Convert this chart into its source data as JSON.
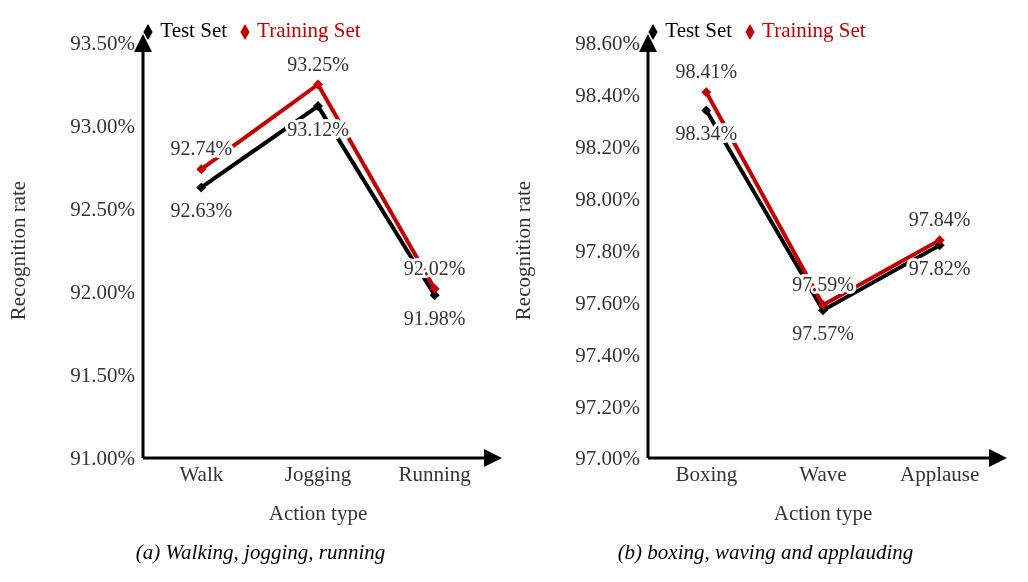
{
  "chart_data": [
    {
      "type": "line",
      "title": "(a) Walking, jogging, running",
      "xlabel": "Action type",
      "ylabel": "Recognition rate",
      "categories": [
        "Walk",
        "Jogging",
        "Running"
      ],
      "series": [
        {
          "name": "Test Set",
          "color": "#000000",
          "values": [
            92.63,
            93.12,
            91.98
          ],
          "value_labels": [
            "92.63%",
            "93.12%",
            "91.98%"
          ]
        },
        {
          "name": "Training Set",
          "color": "#c00000",
          "values": [
            92.74,
            93.25,
            92.02
          ],
          "value_labels": [
            "92.74%",
            "93.25%",
            "92.02%"
          ]
        }
      ],
      "ylim": [
        91.0,
        93.5
      ],
      "yticks": [
        {
          "value": 91.0,
          "label": "91.00%"
        },
        {
          "value": 91.5,
          "label": "91.50%"
        },
        {
          "value": 92.0,
          "label": "92.00%"
        },
        {
          "value": 92.5,
          "label": "92.50%"
        },
        {
          "value": 93.0,
          "label": "93.00%"
        },
        {
          "value": 93.5,
          "label": "93.50%"
        }
      ],
      "grid": false,
      "legend": "top",
      "marker": "diamond",
      "line_style": "solid"
    },
    {
      "type": "line",
      "title": "(b) boxing, waving and applauding",
      "xlabel": "Action type",
      "ylabel": "Recognition rate",
      "categories": [
        "Boxing",
        "Wave",
        "Applause"
      ],
      "series": [
        {
          "name": "Test Set",
          "color": "#000000",
          "values": [
            98.34,
            97.57,
            97.82
          ],
          "value_labels": [
            "98.34%",
            "97.57%",
            "97.82%"
          ]
        },
        {
          "name": "Training Set",
          "color": "#c00000",
          "values": [
            98.41,
            97.59,
            97.84
          ],
          "value_labels": [
            "98.41%",
            "97.59%",
            "97.84%"
          ]
        }
      ],
      "ylim": [
        97.0,
        98.6
      ],
      "yticks": [
        {
          "value": 97.0,
          "label": "97.00%"
        },
        {
          "value": 97.2,
          "label": "97.20%"
        },
        {
          "value": 97.4,
          "label": "97.40%"
        },
        {
          "value": 97.6,
          "label": "97.60%"
        },
        {
          "value": 97.8,
          "label": "97.80%"
        },
        {
          "value": 98.0,
          "label": "98.00%"
        },
        {
          "value": 98.2,
          "label": "98.20%"
        },
        {
          "value": 98.4,
          "label": "98.40%"
        },
        {
          "value": 98.6,
          "label": "98.60%"
        }
      ],
      "grid": false,
      "legend": "top",
      "marker": "diamond",
      "line_style": "solid"
    }
  ]
}
